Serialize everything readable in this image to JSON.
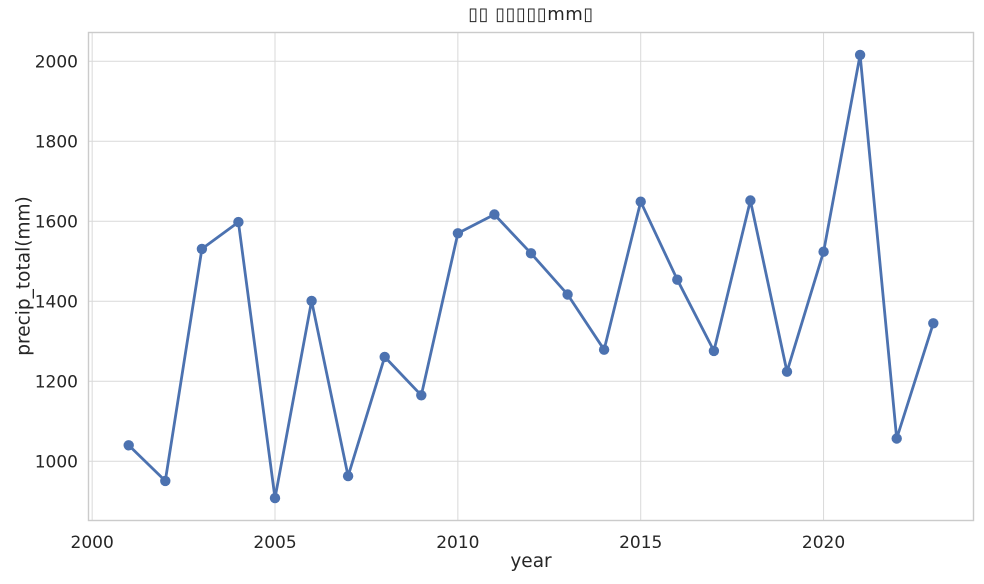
{
  "chart_data": {
    "type": "line",
    "title": "▯▯ ▯▯▯▯▯mm▯",
    "xlabel": "year",
    "ylabel": "precip_total(mm)",
    "x": [
      2001,
      2002,
      2003,
      2004,
      2005,
      2006,
      2007,
      2008,
      2009,
      2010,
      2011,
      2012,
      2013,
      2014,
      2015,
      2016,
      2017,
      2018,
      2019,
      2020,
      2021,
      2022,
      2023
    ],
    "series": [
      {
        "name": "precip_total",
        "values": [
          1040,
          951,
          1531,
          1598,
          908,
          1401,
          963,
          1261,
          1165,
          1570,
          1617,
          1520,
          1417,
          1279,
          1649,
          1454,
          1276,
          1652,
          1224,
          1524,
          2016,
          1057,
          1345
        ]
      }
    ],
    "xticks": [
      2000,
      2005,
      2010,
      2015,
      2020
    ],
    "yticks": [
      1000,
      1200,
      1400,
      1600,
      1800,
      2000
    ],
    "xlim": [
      1999.9,
      2024.1
    ],
    "ylim": [
      852,
      2072
    ],
    "grid": true,
    "legend_position": "none",
    "marker": "circle",
    "colors": {
      "line": "#4C72B0",
      "grid": "#D9D9D9",
      "spine": "#CBCBCB",
      "text": "#262626",
      "background": "#FFFFFF"
    }
  }
}
